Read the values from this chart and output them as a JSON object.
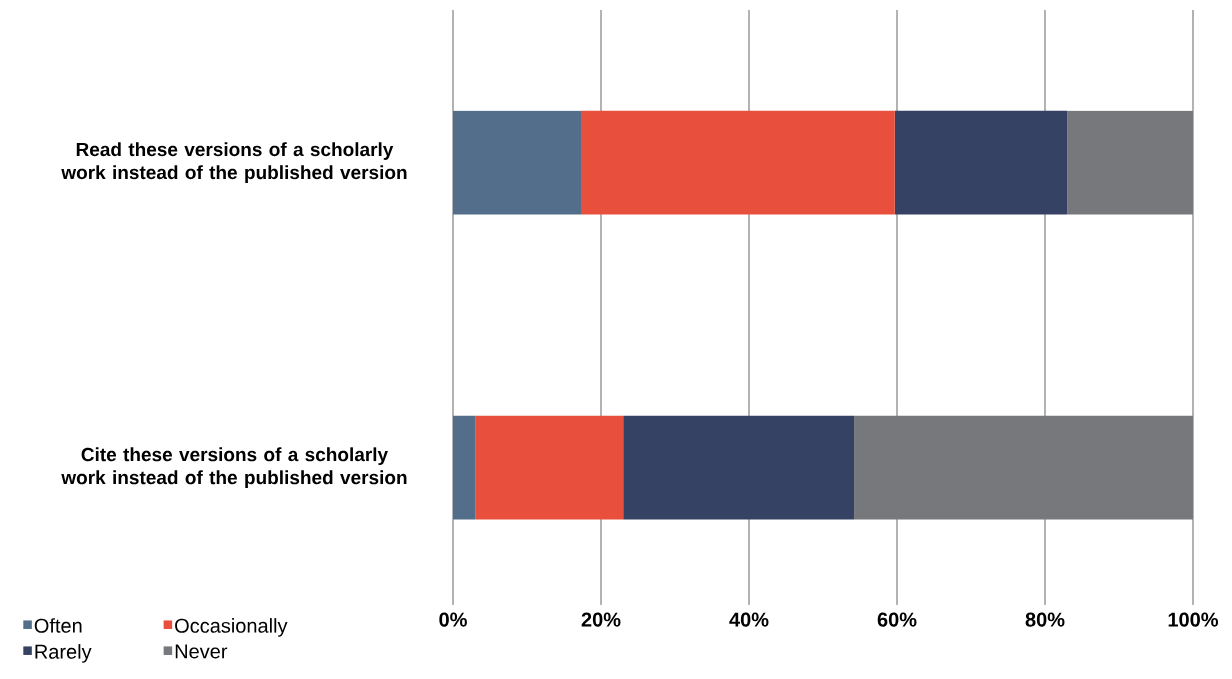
{
  "chart_data": {
    "type": "bar",
    "orientation": "horizontal",
    "stacked": true,
    "categories": [
      "Read these versions of a scholarly work instead of the published version",
      "Cite these versions of a scholarly work instead of the published version"
    ],
    "series": [
      {
        "name": "Often",
        "color": "#526e8a",
        "values": [
          17.3,
          3.0
        ]
      },
      {
        "name": "Occasionally",
        "color": "#e8503d",
        "values": [
          42.4,
          20.0
        ]
      },
      {
        "name": "Rarely",
        "color": "#364264",
        "values": [
          23.3,
          31.2
        ]
      },
      {
        "name": "Never",
        "color": "#77787b",
        "values": [
          17.0,
          45.8
        ]
      }
    ],
    "xlim": [
      0,
      100
    ],
    "xticks": [
      {
        "value": 0,
        "label": "0%"
      },
      {
        "value": 20,
        "label": "20%"
      },
      {
        "value": 40,
        "label": "40%"
      },
      {
        "value": 60,
        "label": "60%"
      },
      {
        "value": 80,
        "label": "80%"
      },
      {
        "value": 100,
        "label": "100%"
      }
    ],
    "grid": "x",
    "legend": "bottom left"
  }
}
